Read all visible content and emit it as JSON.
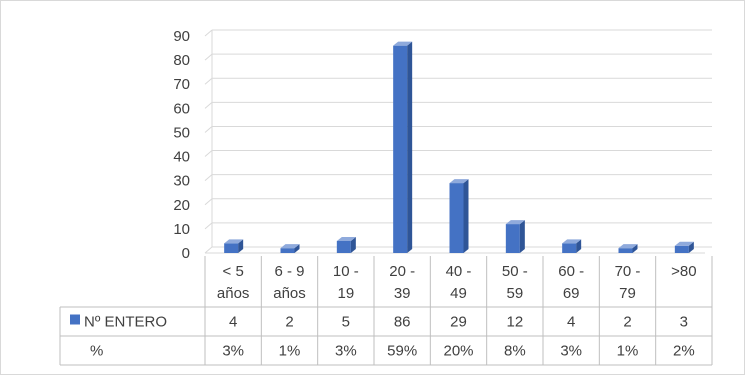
{
  "chart_data": {
    "type": "bar",
    "categories": [
      [
        "< 5",
        "años"
      ],
      [
        "6 - 9",
        "años"
      ],
      [
        "10 -",
        "19"
      ],
      [
        "20 -",
        "39"
      ],
      [
        "40 -",
        "49"
      ],
      [
        "50 -",
        "59"
      ],
      [
        "60 -",
        "69"
      ],
      [
        "70 -",
        "79"
      ],
      [
        ">80",
        ""
      ]
    ],
    "series": [
      {
        "name": "Nº ENTERO",
        "values": [
          4,
          2,
          5,
          86,
          29,
          12,
          4,
          2,
          3
        ]
      }
    ],
    "table_rows": [
      {
        "label": "Nº ENTERO",
        "values": [
          "4",
          "2",
          "5",
          "86",
          "29",
          "12",
          "4",
          "2",
          "3"
        ],
        "legend_key": true
      },
      {
        "label": "%",
        "values": [
          "3%",
          "1%",
          "3%",
          "59%",
          "20%",
          "8%",
          "3%",
          "1%",
          "2%"
        ],
        "legend_key": false
      }
    ],
    "y_ticks": [
      "0",
      "10",
      "20",
      "30",
      "40",
      "50",
      "60",
      "70",
      "80",
      "90"
    ],
    "ylim": [
      0,
      90
    ],
    "grid": true,
    "colors": {
      "bar": "#4472c4",
      "bar_side": "#2f5597",
      "bar_top": "#8faadc",
      "grid": "#d9d9d9"
    }
  }
}
